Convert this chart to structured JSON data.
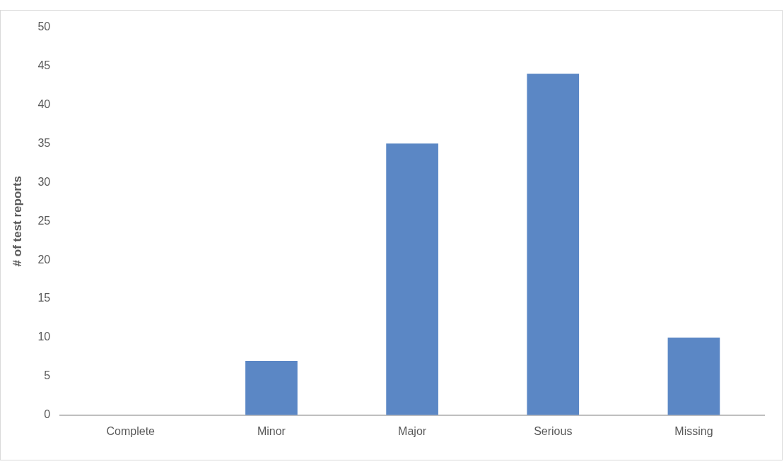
{
  "chart_data": {
    "type": "bar",
    "ylabel": "# of test reports",
    "categories": [
      "Complete",
      "Minor",
      "Major",
      "Serious",
      "Missing"
    ],
    "values": [
      0,
      7,
      35,
      44,
      10
    ],
    "color": "#5b87c5",
    "ylim": [
      0,
      50
    ],
    "yticks": [
      0,
      5,
      10,
      15,
      20,
      25,
      30,
      35,
      40,
      45,
      50
    ],
    "grid": false,
    "legend": false
  }
}
